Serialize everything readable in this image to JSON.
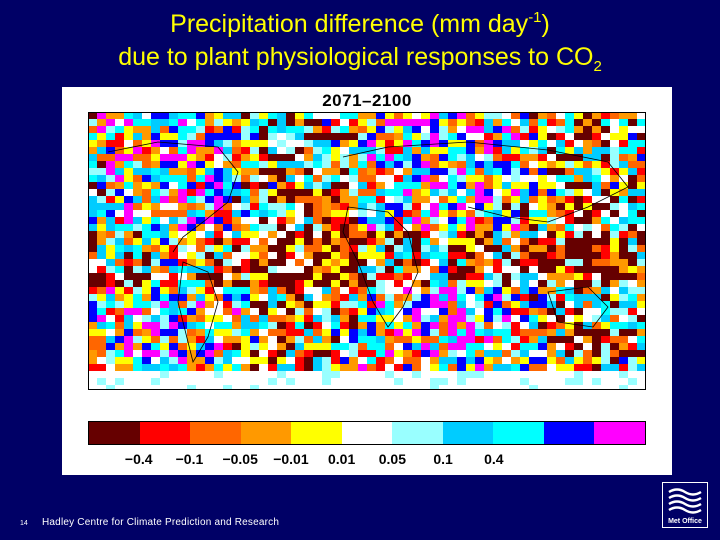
{
  "header": {
    "title_line1_pre": "Precipitation difference (mm day",
    "title_line1_sup": "-1",
    "title_line1_post": ")",
    "title_line2_pre": "due to plant physiological responses to CO",
    "title_line2_sub": "2"
  },
  "map": {
    "period": "2071–2100",
    "legend": {
      "colors": [
        "#660000",
        "#FF0000",
        "#FF6600",
        "#FF9900",
        "#FFFF00",
        "#FFFFFF",
        "#99FFFF",
        "#00CCFF",
        "#00FFFF",
        "#0000FF",
        "#FF00FF"
      ],
      "labels": [
        "−0.4",
        "−0.1",
        "−0.05",
        "−0.01",
        "0.01",
        "0.05",
        "0.1",
        "0.4"
      ]
    }
  },
  "footer": {
    "slide_number": "14",
    "credit": "Hadley Centre for Climate Prediction and Research",
    "logo_text": "Met Office"
  },
  "colors": {
    "background": "#000066",
    "title": "#FFFF00",
    "footer_text": "#FFFFFF"
  }
}
